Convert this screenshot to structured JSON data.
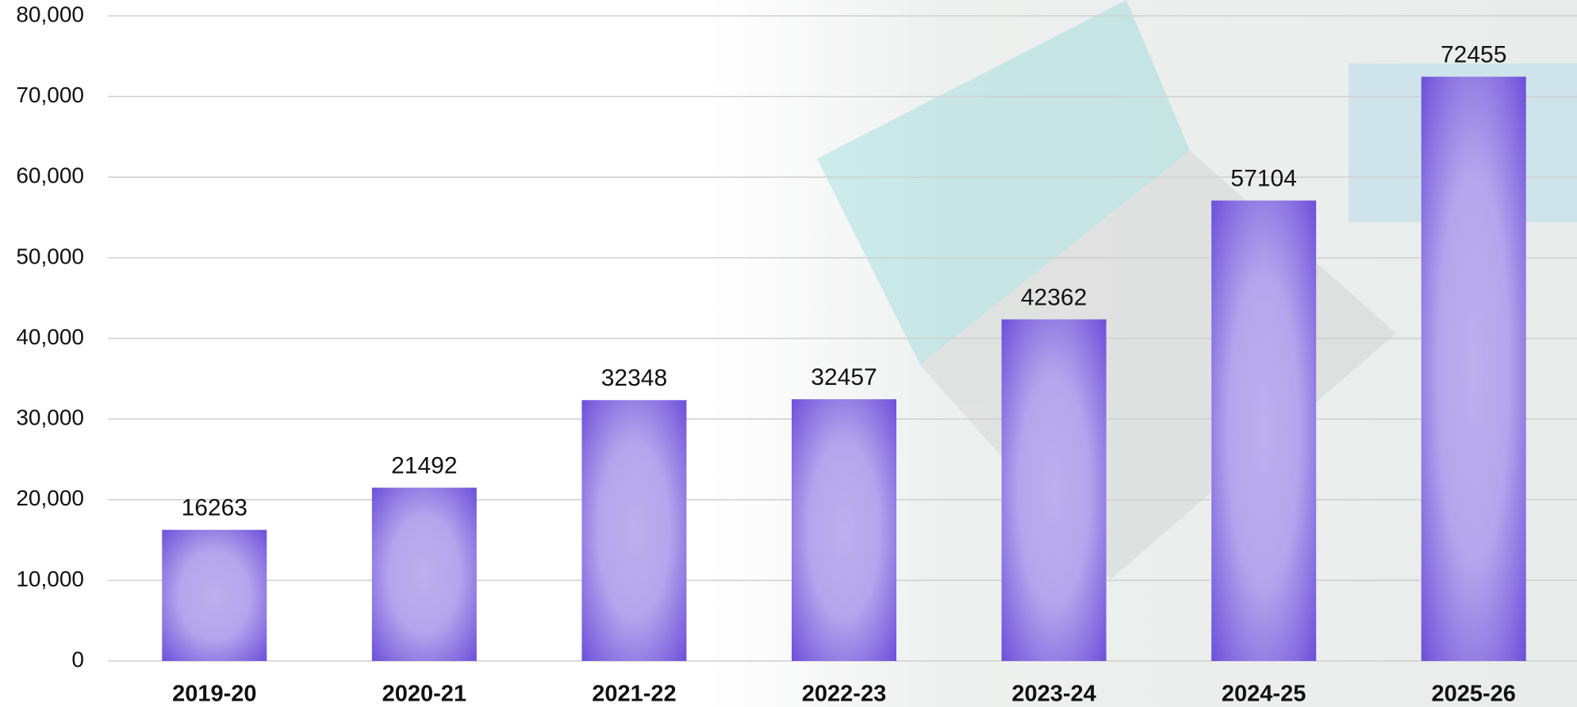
{
  "chart_data": {
    "type": "bar",
    "categories": [
      "2019-20",
      "2020-21",
      "2021-22",
      "2022-23",
      "2023-24",
      "2024-25",
      "2025-26"
    ],
    "values": [
      16263,
      21492,
      32348,
      32457,
      42362,
      57104,
      72455
    ],
    "color": "#6445d8",
    "ylim": [
      0,
      80000
    ],
    "yticks": [
      0,
      {
        "value": 10000,
        "label": "10,000"
      },
      {
        "value": 20000,
        "label": "20,000"
      },
      {
        "value": 30000,
        "label": "30,000"
      },
      {
        "value": 40000,
        "label": "40,000"
      },
      {
        "value": 50000,
        "label": "50,000"
      },
      {
        "value": 60000,
        "label": "60,000"
      },
      {
        "value": 70000,
        "label": "70,000"
      },
      {
        "value": 80000,
        "label": "80,000"
      }
    ],
    "grid": true
  }
}
